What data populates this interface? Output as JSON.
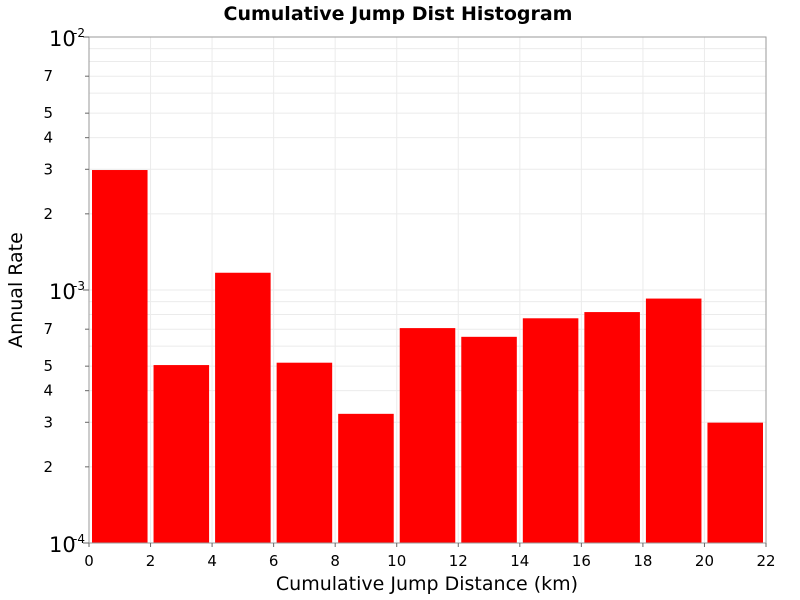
{
  "chart_data": {
    "type": "bar",
    "title": "Cumulative Jump Dist Histogram",
    "xlabel": "Cumulative Jump Distance (km)",
    "ylabel": "Annual Rate",
    "xlim": [
      0,
      22
    ],
    "ylim": [
      0.0001,
      0.01
    ],
    "yscale": "log",
    "grid": true,
    "bar_color": "#ff0000",
    "bins": [
      {
        "x0": 0,
        "x1": 2,
        "value": 0.00298
      },
      {
        "x0": 2,
        "x1": 4,
        "value": 0.000505
      },
      {
        "x0": 4,
        "x1": 6,
        "value": 0.00117
      },
      {
        "x0": 6,
        "x1": 8,
        "value": 0.000516
      },
      {
        "x0": 8,
        "x1": 10,
        "value": 0.000324
      },
      {
        "x0": 10,
        "x1": 12,
        "value": 0.000707
      },
      {
        "x0": 12,
        "x1": 14,
        "value": 0.000653
      },
      {
        "x0": 14,
        "x1": 16,
        "value": 0.000773
      },
      {
        "x0": 16,
        "x1": 18,
        "value": 0.000818
      },
      {
        "x0": 18,
        "x1": 20,
        "value": 0.000925
      },
      {
        "x0": 20,
        "x1": 22,
        "value": 0.000299
      }
    ],
    "x_ticks": [
      {
        "value": 0,
        "label": "0"
      },
      {
        "value": 2,
        "label": "2"
      },
      {
        "value": 4,
        "label": "4"
      },
      {
        "value": 6,
        "label": "6"
      },
      {
        "value": 8,
        "label": "8"
      },
      {
        "value": 10,
        "label": "10"
      },
      {
        "value": 12,
        "label": "12"
      },
      {
        "value": 14,
        "label": "14"
      },
      {
        "value": 16,
        "label": "16"
      },
      {
        "value": 18,
        "label": "18"
      },
      {
        "value": 20,
        "label": "20"
      },
      {
        "value": 22,
        "label": "22"
      }
    ],
    "y_major_ticks": [
      {
        "value": 0.0001,
        "base": "10",
        "exp": "-4"
      },
      {
        "value": 0.001,
        "base": "10",
        "exp": "-3"
      },
      {
        "value": 0.01,
        "base": "10",
        "exp": "-2"
      }
    ],
    "y_minor_ticks": [
      {
        "value": 0.0002,
        "label": "2"
      },
      {
        "value": 0.0003,
        "label": "3"
      },
      {
        "value": 0.0004,
        "label": "4"
      },
      {
        "value": 0.0005,
        "label": "5"
      },
      {
        "value": 0.0007,
        "label": "7"
      },
      {
        "value": 0.002,
        "label": "2"
      },
      {
        "value": 0.003,
        "label": "3"
      },
      {
        "value": 0.004,
        "label": "4"
      },
      {
        "value": 0.005,
        "label": "5"
      },
      {
        "value": 0.007,
        "label": "7"
      }
    ]
  }
}
